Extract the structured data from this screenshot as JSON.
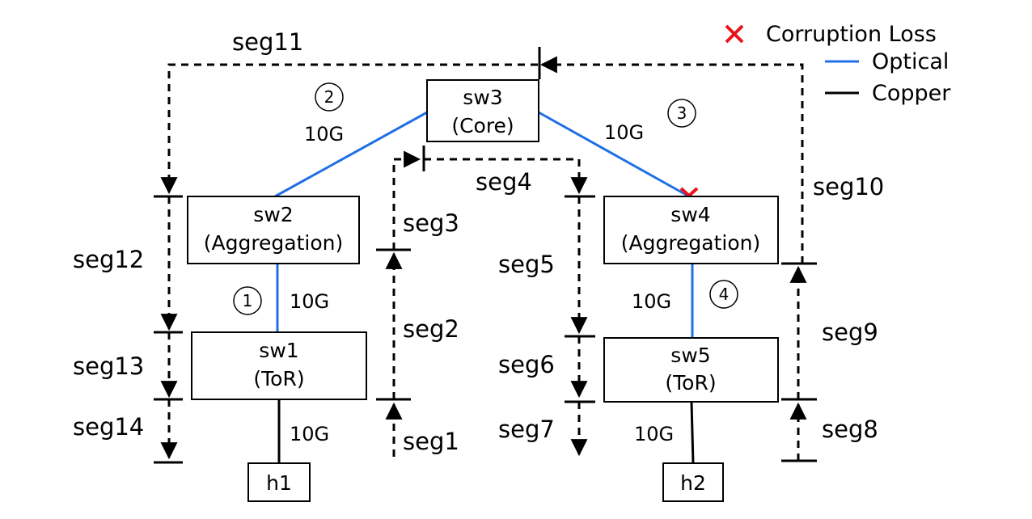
{
  "legend": {
    "corruption_loss": "Corruption Loss",
    "optical": "Optical",
    "copper": "Copper"
  },
  "colors": {
    "optical": "#1f6fe5",
    "copper": "#000000",
    "loss_marker": "#e8141b",
    "path": "#000000"
  },
  "switches": {
    "sw1": {
      "name": "sw1",
      "role": "(ToR)"
    },
    "sw2": {
      "name": "sw2",
      "role": "(Aggregation)"
    },
    "sw3": {
      "name": "sw3",
      "role": "(Core)"
    },
    "sw4": {
      "name": "sw4",
      "role": "(Aggregation)"
    },
    "sw5": {
      "name": "sw5",
      "role": "(ToR)"
    }
  },
  "hosts": {
    "h1": "h1",
    "h2": "h2"
  },
  "links": {
    "l1": {
      "number": "1",
      "speed": "10G"
    },
    "l2": {
      "number": "2",
      "speed": "10G"
    },
    "l3": {
      "number": "3",
      "speed": "10G"
    },
    "l4": {
      "number": "4",
      "speed": "10G"
    },
    "h1_sw1": {
      "speed": "10G"
    },
    "h2_sw5": {
      "speed": "10G"
    }
  },
  "segments": [
    "seg1",
    "seg2",
    "seg3",
    "seg4",
    "seg5",
    "seg6",
    "seg7",
    "seg8",
    "seg9",
    "seg10",
    "seg11",
    "seg12",
    "seg13",
    "seg14"
  ]
}
